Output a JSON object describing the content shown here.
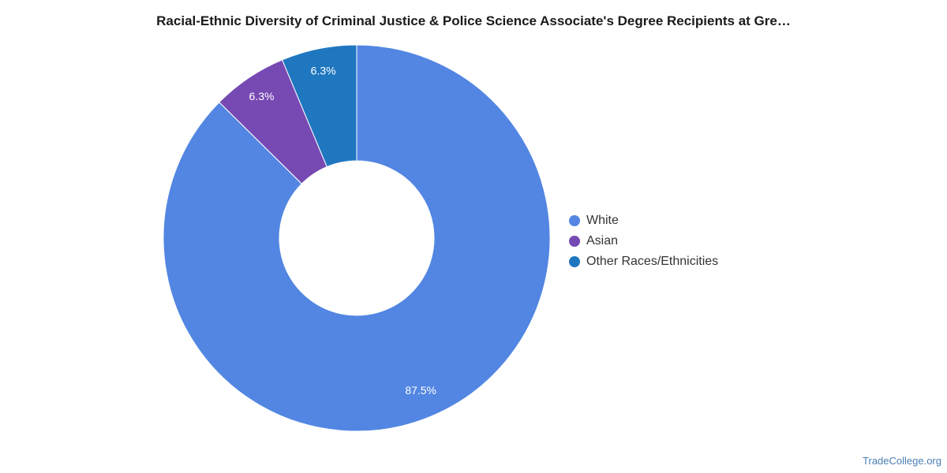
{
  "chart_data": {
    "type": "pie",
    "title": "Racial-Ethnic Diversity of Criminal Justice & Police Science Associate's Degree Recipients at Gre…",
    "categories": [
      "White",
      "Asian",
      "Other Races/Ethnicities"
    ],
    "values": [
      87.5,
      6.3,
      6.3
    ],
    "value_labels": [
      "87.5%",
      "6.3%",
      "6.3%"
    ],
    "colors": [
      "#5286e2",
      "#7649b3",
      "#1f77c0"
    ],
    "donut": true,
    "legend_position": "right"
  },
  "watermark": "TradeCollege.org"
}
